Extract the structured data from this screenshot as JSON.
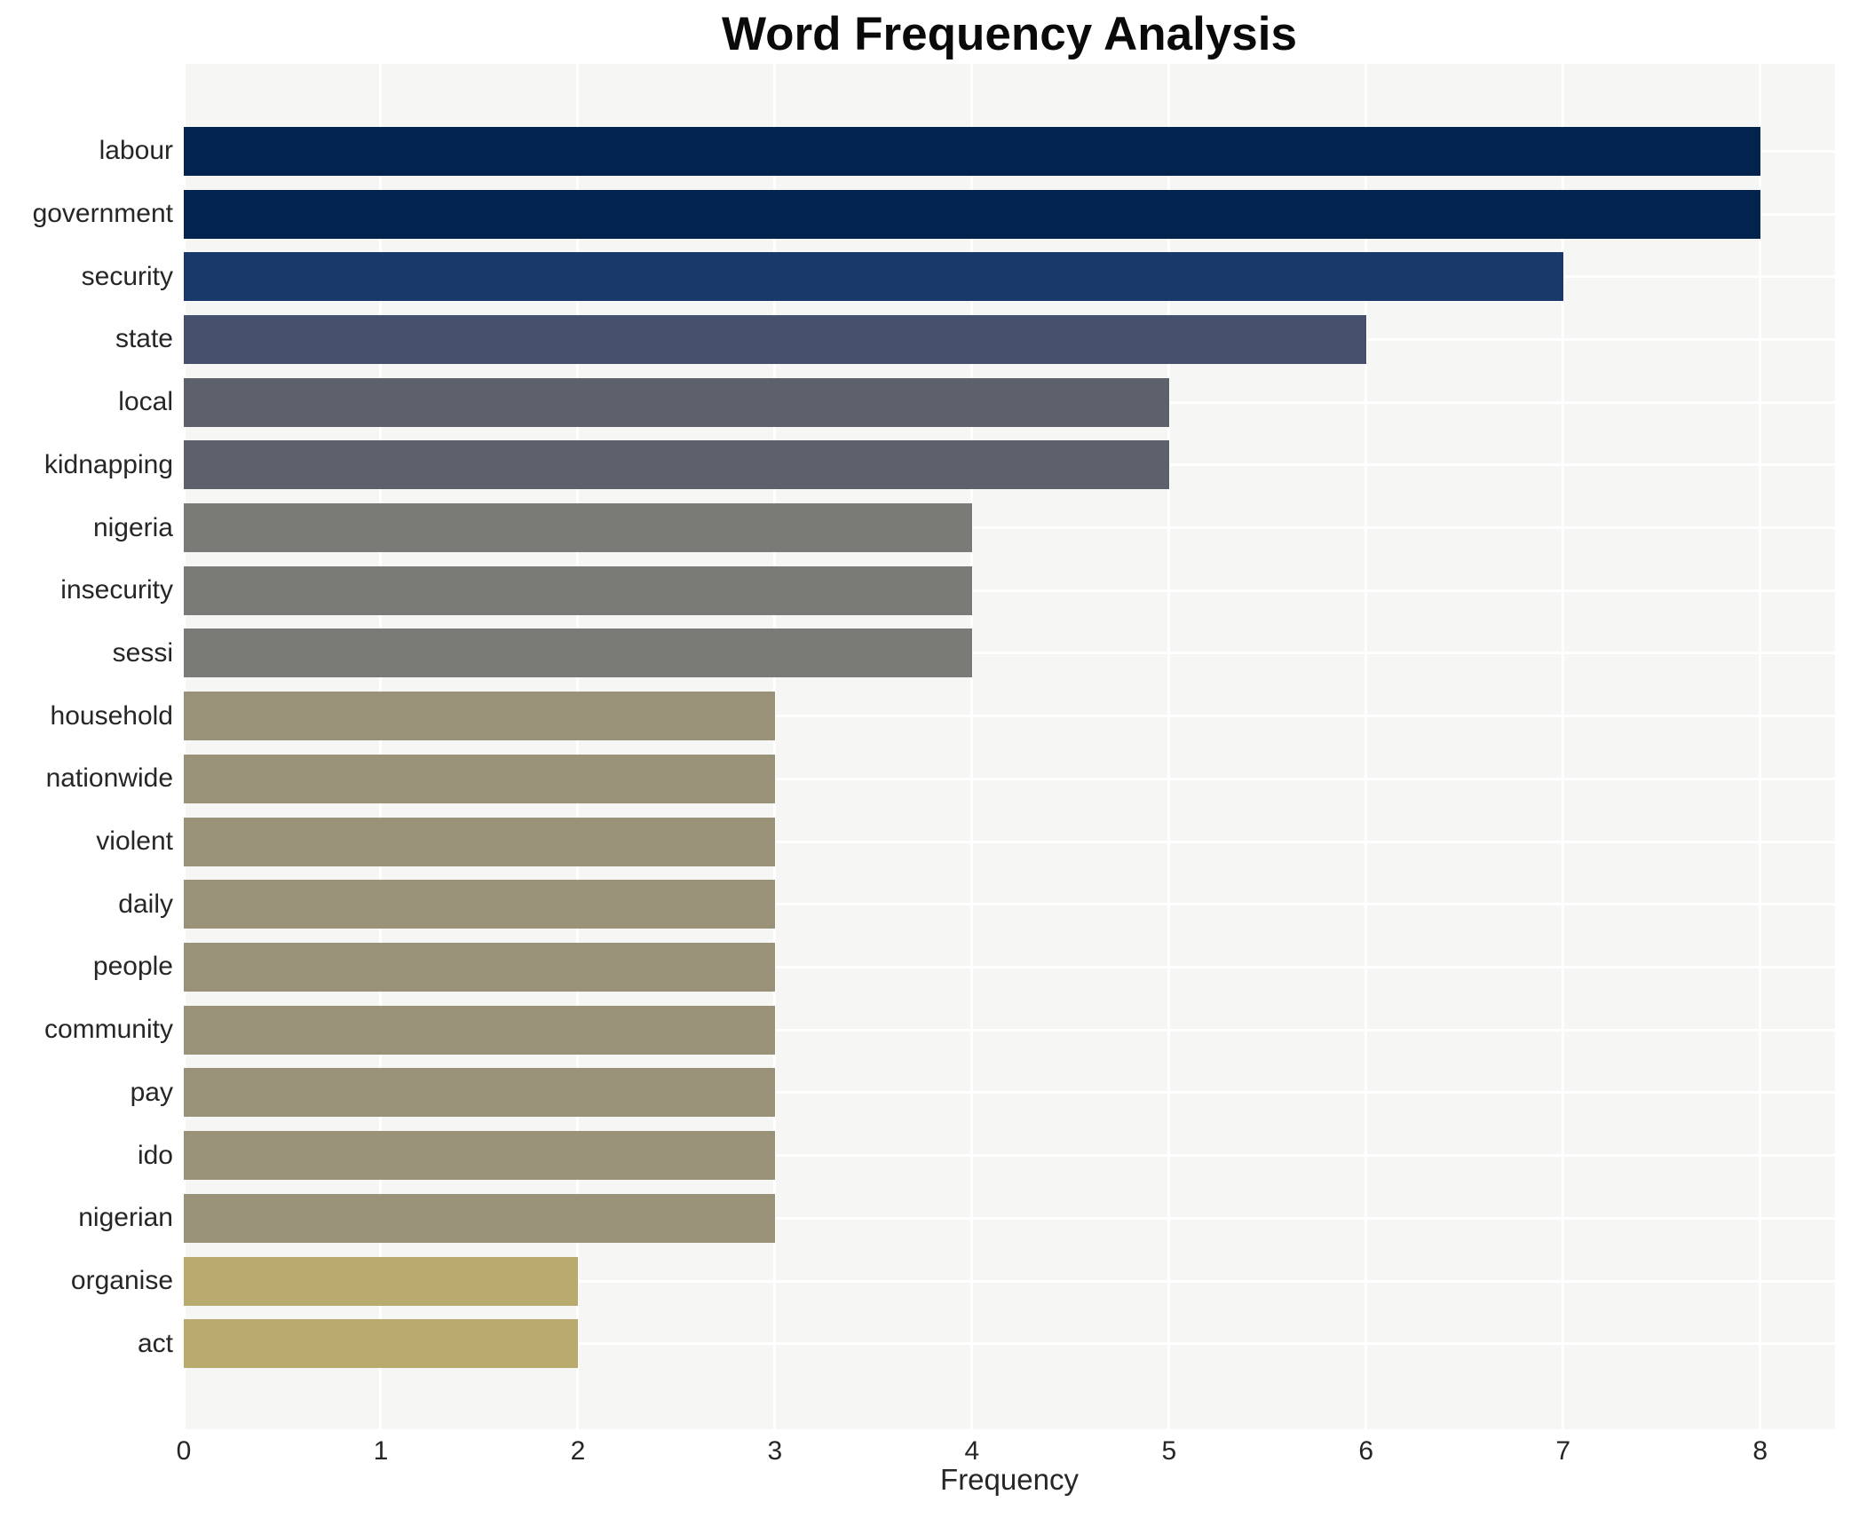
{
  "title": "Word Frequency Analysis",
  "chart_data": {
    "type": "bar",
    "orientation": "horizontal",
    "title": "Word Frequency Analysis",
    "xlabel": "Frequency",
    "ylabel": "",
    "categories": [
      "labour",
      "government",
      "security",
      "state",
      "local",
      "kidnapping",
      "nigeria",
      "insecurity",
      "sessi",
      "household",
      "nationwide",
      "violent",
      "daily",
      "people",
      "community",
      "pay",
      "ido",
      "nigerian",
      "organise",
      "act"
    ],
    "values": [
      8,
      8,
      7,
      6,
      5,
      5,
      4,
      4,
      4,
      3,
      3,
      3,
      3,
      3,
      3,
      3,
      3,
      3,
      2,
      2
    ],
    "bar_colors": [
      "#02234e",
      "#02234e",
      "#1a396b",
      "#46506c",
      "#5d616b",
      "#5d616b",
      "#7a7a77",
      "#7a7a77",
      "#7a7a77",
      "#9a9278",
      "#9a9278",
      "#9a9278",
      "#9a9278",
      "#9a9278",
      "#9a9278",
      "#9a9278",
      "#9a9278",
      "#9a9278",
      "#b9ab6d",
      "#b9ab6d"
    ],
    "x_ticks": [
      0,
      1,
      2,
      3,
      4,
      5,
      6,
      7,
      8
    ],
    "xlim": [
      0,
      8.38
    ],
    "grid": true,
    "legend": "none",
    "plot_background": "#f6f6f5",
    "figure_background": "#ffffff",
    "gridline_color": "#ffffff",
    "tick_text_color": "#262626",
    "title_color": "#0a0a0a"
  }
}
